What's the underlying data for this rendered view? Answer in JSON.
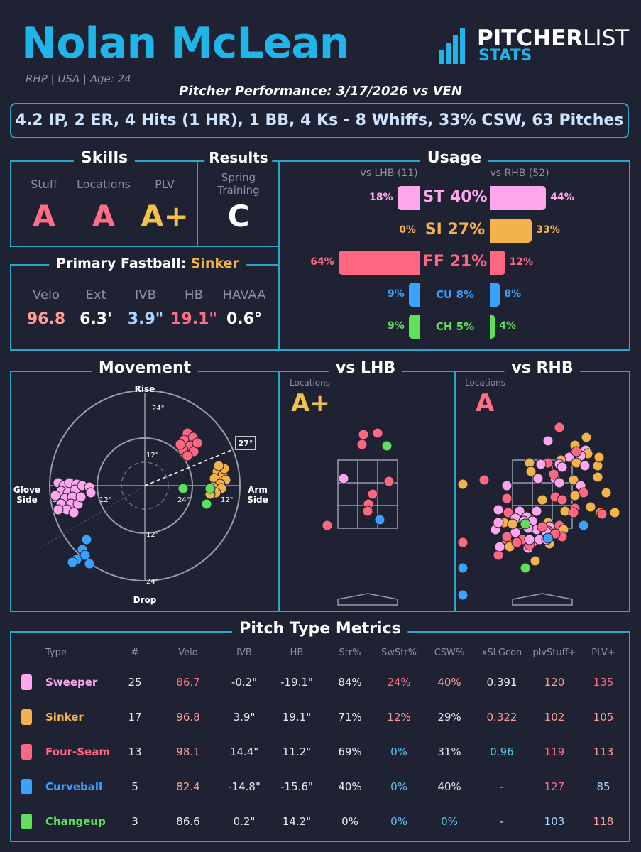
{
  "header": {
    "name": "Nolan McLean",
    "subtitle": "RHP | USA | Age: 24",
    "performance": "Pitcher Performance: 3/17/2026 vs VEN",
    "logo_top_bold": "PITCHER",
    "logo_top_light": "LIST",
    "logo_bottom": "STATS",
    "statline": "4.2 IP, 2 ER, 4 Hits (1 HR), 1 BB, 4 Ks - 8 Whiffs, 33% CSW, 63 Pitches"
  },
  "skills": {
    "title": "Skills",
    "items": [
      {
        "label": "Stuff",
        "grade": "A"
      },
      {
        "label": "Locations",
        "grade": "A"
      },
      {
        "label": "PLV",
        "grade": "A+"
      }
    ]
  },
  "results": {
    "title": "Results",
    "label_line1": "Spring",
    "label_line2": "Training",
    "grade": "C"
  },
  "fastball": {
    "title": "Primary Fastball:",
    "pitch": "Sinker",
    "metrics": [
      {
        "label": "Velo",
        "value": "96.8"
      },
      {
        "label": "Ext",
        "value": "6.3'"
      },
      {
        "label": "IVB",
        "value": "3.9\""
      },
      {
        "label": "HB",
        "value": "19.1\""
      },
      {
        "label": "HAVAA",
        "value": "0.6°"
      }
    ]
  },
  "usage": {
    "title": "Usage",
    "lhb_label": "vs LHB (11)",
    "rhb_label": "vs RHB (52)",
    "rows": [
      {
        "pitch": "ST 40%",
        "lhb": "18%",
        "rhb": "44%",
        "lhb_pct": 18,
        "rhb_pct": 44,
        "color": "#ffa6ef"
      },
      {
        "pitch": "SI 27%",
        "lhb": "0%",
        "rhb": "33%",
        "lhb_pct": 0,
        "rhb_pct": 33,
        "color": "#f3b24a"
      },
      {
        "pitch": "FF 21%",
        "lhb": "64%",
        "rhb": "12%",
        "lhb_pct": 64,
        "rhb_pct": 12,
        "color": "#ff6781"
      },
      {
        "pitch": "CU 8%",
        "lhb": "9%",
        "rhb": "8%",
        "lhb_pct": 9,
        "rhb_pct": 8,
        "color": "#3aa1ff"
      },
      {
        "pitch": "CH 5%",
        "lhb": "9%",
        "rhb": "4%",
        "lhb_pct": 9,
        "rhb_pct": 4,
        "color": "#5fe05a"
      }
    ]
  },
  "movement": {
    "title": "Movement",
    "rise": "Rise",
    "drop": "Drop",
    "glove1": "Glove",
    "glove2": "Side",
    "arm1": "Arm",
    "arm2": "Side",
    "arm_angle": "27°",
    "ring_labels": [
      "24\"",
      "12\"",
      "12\"",
      "24\"",
      "12\"",
      "12\"",
      "24\"",
      "24\""
    ]
  },
  "lhb": {
    "title": "vs LHB",
    "loc_label": "Locations",
    "grade": "A+"
  },
  "rhb": {
    "title": "vs RHB",
    "loc_label": "Locations",
    "grade": "A"
  },
  "metrics_table": {
    "title": "Pitch Type Metrics",
    "headers": [
      "Type",
      "#",
      "Velo",
      "IVB",
      "HB",
      "Str%",
      "SwStr%",
      "CSW%",
      "xSLGcon",
      "plvStuff+",
      "PLV+"
    ],
    "rows": [
      {
        "type": "Sweeper",
        "color": "#ffa6ef",
        "n": "25",
        "velo": "86.7",
        "ivb": "-0.2\"",
        "hb": "-19.1\"",
        "str": "84%",
        "swstr": "24%",
        "csw": "40%",
        "xslg": "0.391",
        "stuff": "120",
        "plv": "135"
      },
      {
        "type": "Sinker",
        "color": "#f3b24a",
        "n": "17",
        "velo": "96.8",
        "ivb": "3.9\"",
        "hb": "19.1\"",
        "str": "71%",
        "swstr": "12%",
        "csw": "29%",
        "xslg": "0.322",
        "stuff": "102",
        "plv": "105"
      },
      {
        "type": "Four-Seam",
        "color": "#ff6781",
        "n": "13",
        "velo": "98.1",
        "ivb": "14.4\"",
        "hb": "11.2\"",
        "str": "69%",
        "swstr": "0%",
        "csw": "31%",
        "xslg": "0.96",
        "stuff": "119",
        "plv": "113"
      },
      {
        "type": "Curveball",
        "color": "#3aa1ff",
        "n": "5",
        "velo": "82.4",
        "ivb": "-14.8\"",
        "hb": "-15.6\"",
        "str": "40%",
        "swstr": "0%",
        "csw": "40%",
        "xslg": "-",
        "stuff": "127",
        "plv": "85"
      },
      {
        "type": "Changeup",
        "color": "#5fe05a",
        "n": "3",
        "velo": "86.6",
        "ivb": "0.2\"",
        "hb": "14.2\"",
        "str": "0%",
        "swstr": "0%",
        "csw": "0%",
        "xslg": "-",
        "stuff": "103",
        "plv": "118"
      }
    ]
  },
  "colors": {
    "accent": "#1fb5e8",
    "border": "#2aa7c6",
    "bg": "#1f2233",
    "red": "#ff6e86",
    "gold": "#f2c246",
    "blue_good": "#5cc8f0",
    "salmon": "#ff9d95"
  }
}
